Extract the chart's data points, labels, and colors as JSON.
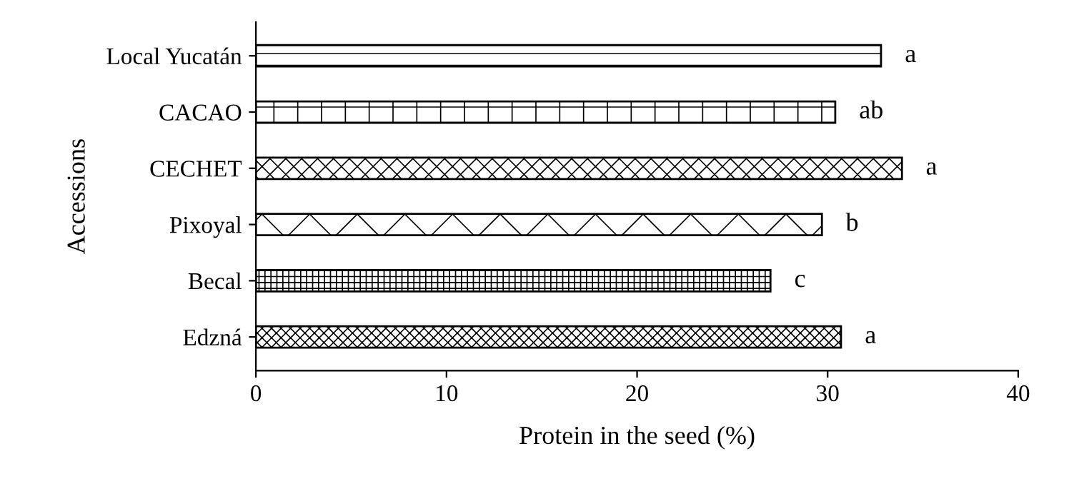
{
  "chart_data": {
    "type": "bar",
    "orientation": "horizontal",
    "xlabel": "Protein in the seed (%)",
    "ylabel": "Accessions",
    "categories": [
      "Local Yucatán",
      "CACAO",
      "CECHET",
      "Pixoyal",
      "Becal",
      "Edzná"
    ],
    "values": [
      32.8,
      30.4,
      33.9,
      29.7,
      27.0,
      30.7
    ],
    "value_labels": [
      "a",
      "ab",
      "a",
      "b",
      "c",
      "a"
    ],
    "color": "#000000",
    "xlim": [
      0,
      40
    ],
    "xticks": [
      0,
      10,
      20,
      30,
      40
    ],
    "grid": false,
    "legend": false
  }
}
